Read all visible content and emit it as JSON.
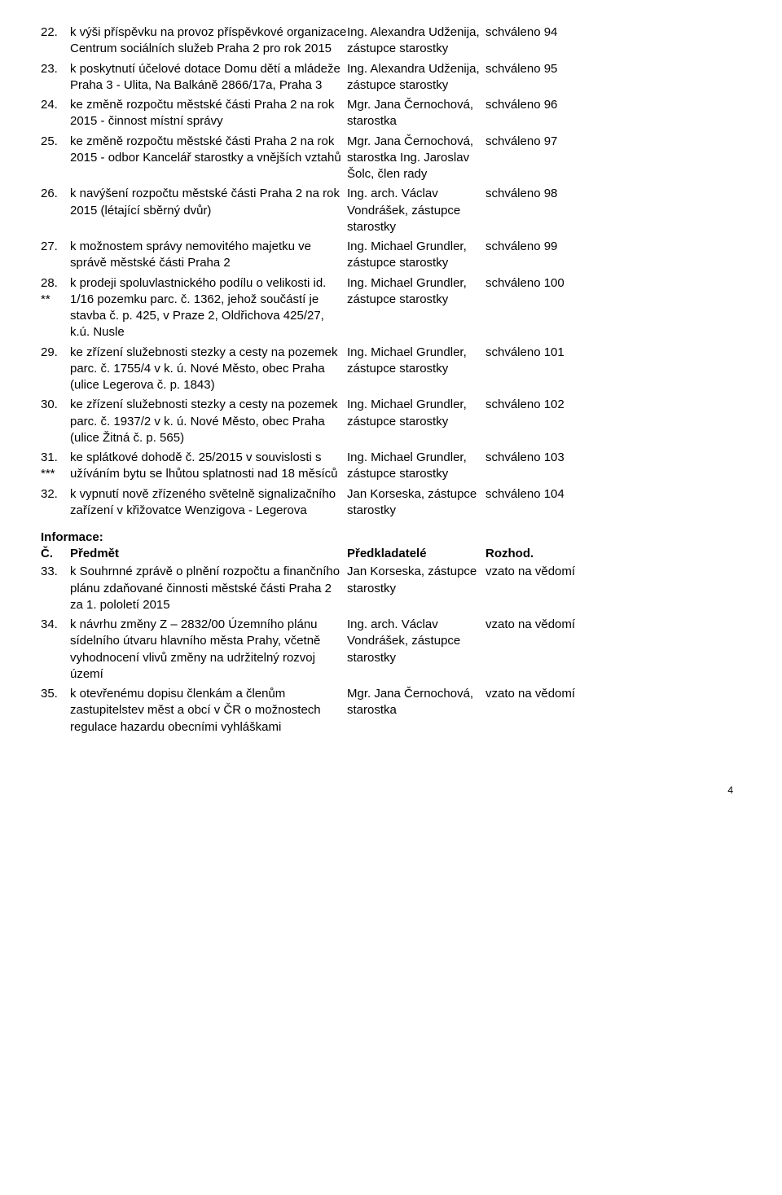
{
  "rows1": [
    {
      "num": "22.",
      "sub": "",
      "subject": "k výši příspěvku na provoz příspěvkové organizace Centrum sociálních služeb Praha 2 pro rok 2015",
      "presenter": "Ing. Alexandra Udženija, zástupce starostky",
      "decision": "schváleno 94"
    },
    {
      "num": "23.",
      "sub": "",
      "subject": "k poskytnutí účelové dotace Domu dětí a mládeže Praha 3 - Ulita, Na Balkáně 2866/17a, Praha 3",
      "presenter": "Ing. Alexandra Udženija, zástupce starostky",
      "decision": "schváleno 95"
    },
    {
      "num": "24.",
      "sub": "",
      "subject": "ke změně rozpočtu městské části Praha 2 na rok 2015 - činnost místní správy",
      "presenter": "Mgr. Jana Černochová, starostka",
      "decision": "schváleno 96"
    },
    {
      "num": "25.",
      "sub": "",
      "subject": "ke změně rozpočtu městské části Praha 2 na rok 2015 - odbor Kancelář starostky a vnějších vztahů",
      "presenter": "Mgr. Jana Černochová, starostka Ing. Jaroslav Šolc, člen rady",
      "decision": "schváleno 97"
    },
    {
      "num": "26.",
      "sub": "",
      "subject": "k navýšení rozpočtu městské části Praha 2 na rok 2015 (létající sběrný dvůr)",
      "presenter": "Ing. arch. Václav Vondrášek, zástupce starostky",
      "decision": "schváleno 98"
    },
    {
      "num": "27.",
      "sub": "",
      "subject": "k možnostem správy nemovitého majetku ve správě městské části Praha 2",
      "presenter": "Ing. Michael Grundler, zástupce starostky",
      "decision": "schváleno 99"
    },
    {
      "num": "28.",
      "sub": "**",
      "subject": "k prodeji spoluvlastnického podílu o velikosti id. 1/16 pozemku parc. č. 1362, jehož součástí je stavba č. p. 425, v Praze 2, Oldřichova 425/27, k.ú. Nusle",
      "presenter": "Ing. Michael Grundler, zástupce starostky",
      "decision": "schváleno 100"
    },
    {
      "num": "29.",
      "sub": "",
      "subject": "ke zřízení služebnosti stezky a cesty na pozemek parc. č. 1755/4 v k. ú. Nové Město, obec Praha (ulice Legerova č. p. 1843)",
      "presenter": "Ing. Michael Grundler, zástupce starostky",
      "decision": "schváleno 101"
    },
    {
      "num": "30.",
      "sub": "",
      "subject": "ke zřízení služebnosti stezky a cesty na pozemek parc. č. 1937/2 v k. ú. Nové Město, obec Praha (ulice Žitná č. p. 565)",
      "presenter": "Ing. Michael Grundler, zástupce starostky",
      "decision": "schváleno 102"
    },
    {
      "num": "31.",
      "sub": "***",
      "subject": "ke splátkové dohodě č. 25/2015 v souvislosti s užíváním bytu se lhůtou splatnosti nad 18 měsíců",
      "presenter": "Ing. Michael Grundler, zástupce starostky",
      "decision": "schváleno 103"
    },
    {
      "num": "32.",
      "sub": "",
      "subject": "k vypnutí nově zřízeného světelně signalizačního zařízení v křižovatce Wenzigova - Legerova",
      "presenter": "Jan Korseska, zástupce starostky",
      "decision": "schváleno 104"
    }
  ],
  "section2": {
    "title": "Informace:",
    "headers": {
      "num": "Č.",
      "subject": "Předmět",
      "presenter": "Předkladatelé",
      "decision": "Rozhod."
    }
  },
  "rows2": [
    {
      "num": "33.",
      "sub": "",
      "subject": "k Souhrnné zprávě o plnění rozpočtu a finančního plánu zdaňované činnosti městské části Praha 2 za 1. pololetí 2015",
      "presenter": "Jan Korseska, zástupce starostky",
      "decision": "vzato na vědomí"
    },
    {
      "num": "34.",
      "sub": "",
      "subject": "k návrhu změny Z – 2832/00 Územního plánu sídelního útvaru hlavního města Prahy, včetně vyhodnocení vlivů změny na udržitelný rozvoj území",
      "presenter": "Ing. arch. Václav Vondrášek, zástupce starostky",
      "decision": "vzato na vědomí"
    },
    {
      "num": "35.",
      "sub": "",
      "subject": "k otevřenému dopisu členkám a členům zastupitelstev měst a obcí v ČR o možnostech regulace hazardu obecními vyhláškami",
      "presenter": "Mgr. Jana Černochová, starostka",
      "decision": "vzato na vědomí"
    }
  ],
  "pageNumber": "4"
}
